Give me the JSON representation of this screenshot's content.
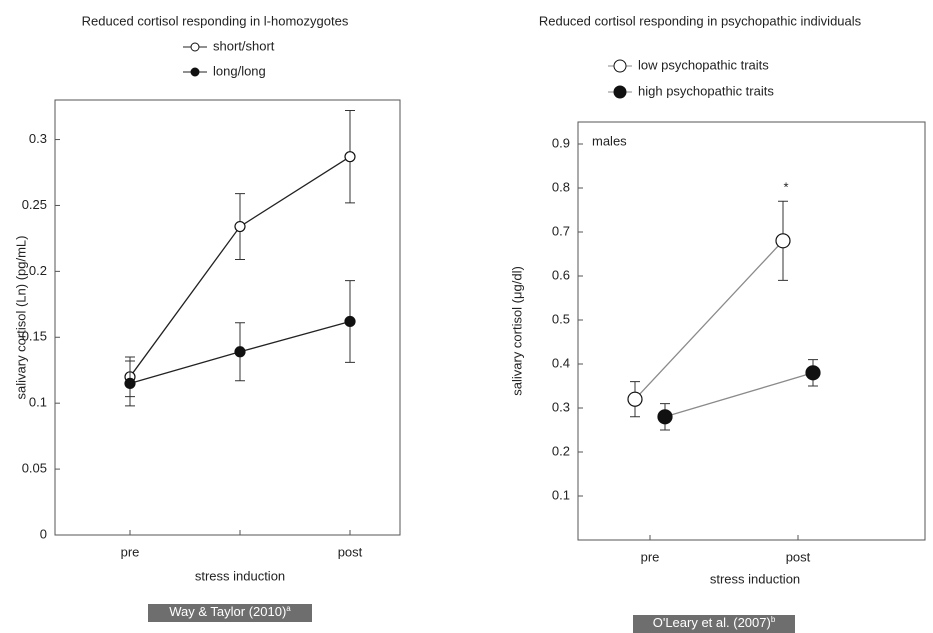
{
  "chart_data": [
    {
      "type": "line",
      "title": "Reduced cortisol responding in l-homozygotes",
      "y_label": "salivary cortisol (Ln) (pg/mL)",
      "x_label": "stress induction",
      "categories": [
        "pre",
        null,
        "post"
      ],
      "ylim": [
        0,
        0.33
      ],
      "yticks": [
        0,
        0.05,
        0.1,
        0.15,
        0.2,
        0.25,
        0.3
      ],
      "series": [
        {
          "name": "short/short",
          "color": "#222222",
          "marker": "open",
          "values": [
            0.12,
            0.234,
            0.287
          ],
          "errors": [
            0.015,
            0.025,
            0.035
          ]
        },
        {
          "name": "long/long",
          "color": "#222222",
          "marker": "filled",
          "values": [
            0.115,
            0.139,
            0.162
          ],
          "errors": [
            0.017,
            0.022,
            0.031
          ]
        }
      ],
      "source": "Way & Taylor (2010)",
      "source_note": "a"
    },
    {
      "type": "line",
      "title": "Reduced cortisol responding in psychopathic individuals",
      "y_label": "salivary cortisol (μg/dl)",
      "x_label": "stress induction",
      "categories": [
        "pre",
        "post"
      ],
      "ylim": [
        0,
        0.95
      ],
      "yticks": [
        0.1,
        0.2,
        0.3,
        0.4,
        0.5,
        0.6,
        0.7,
        0.8,
        0.9
      ],
      "series": [
        {
          "name": "low psychopathic traits",
          "color": "#8a8a8a",
          "marker": "open",
          "values": [
            0.32,
            0.68
          ],
          "errors": [
            0.04,
            0.09
          ]
        },
        {
          "name": "high psychopathic traits",
          "color": "#8a8a8a",
          "marker": "filled",
          "values": [
            0.28,
            0.38
          ],
          "errors": [
            0.03,
            0.03
          ]
        }
      ],
      "annotations": [
        "males",
        "*"
      ],
      "source": "O'Leary et al. (2007)",
      "source_note": "b"
    }
  ]
}
